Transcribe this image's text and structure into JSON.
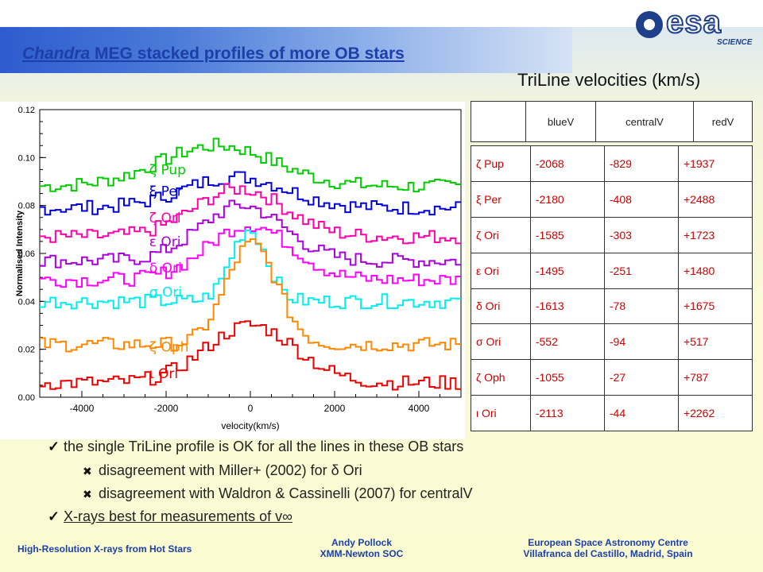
{
  "title": {
    "italic": "Chandra",
    "rest": " MEG stacked profiles of more OB stars"
  },
  "logo": {
    "text": "esa",
    "science": "SCIENCE"
  },
  "table_title": "TriLine velocities (km/s)",
  "table": {
    "headers": [
      "blueV",
      "centralV",
      "redV"
    ],
    "rows": [
      {
        "star": "ζ Pup",
        "blueV": "-2068",
        "centralV": "-829",
        "redV": "+1937"
      },
      {
        "star": "ξ Per",
        "blueV": "-2180",
        "centralV": "-408",
        "redV": "+2488"
      },
      {
        "star": "ζ Ori",
        "blueV": "-1585",
        "centralV": "-303",
        "redV": "+1723"
      },
      {
        "star": "ε Ori",
        "blueV": "-1495",
        "centralV": "-251",
        "redV": "+1480"
      },
      {
        "star": "δ Ori",
        "blueV": "-1613",
        "centralV": "-78",
        "redV": "+1675"
      },
      {
        "star": "σ Ori",
        "blueV": "-552",
        "centralV": "-94",
        "redV": "+517"
      },
      {
        "star": "ζ Oph",
        "blueV": "-1055",
        "centralV": "-27",
        "redV": "+787"
      },
      {
        "star": "ι Ori",
        "blueV": "-2113",
        "centralV": "-44",
        "redV": "+2262"
      }
    ]
  },
  "chart_data": {
    "type": "line",
    "xlabel": "velocity(km/s)",
    "ylabel": "Normalised Intensity",
    "xlim": [
      -5000,
      5000
    ],
    "ylim": [
      0.0,
      0.12
    ],
    "xticks": [
      "-4000",
      "-2000",
      "0",
      "2000",
      "4000"
    ],
    "yticks": [
      "0.00",
      "0.02",
      "0.04",
      "0.06",
      "0.08",
      "0.10",
      "0.12"
    ],
    "series": [
      {
        "name": "ζ Pup",
        "color": "#00cc00",
        "base": 0.088,
        "peak": 0.105,
        "center": -829,
        "width": 1900
      },
      {
        "name": "ξ Per",
        "color": "#0000dd",
        "base": 0.079,
        "peak": 0.092,
        "center": -408,
        "width": 1700
      },
      {
        "name": "ζ Ori",
        "color": "#ff00aa",
        "base": 0.067,
        "peak": 0.087,
        "center": -303,
        "width": 1500
      },
      {
        "name": "ε Ori",
        "color": "#aa00dd",
        "base": 0.057,
        "peak": 0.08,
        "center": -251,
        "width": 1400
      },
      {
        "name": "δ Ori",
        "color": "#ff00ff",
        "base": 0.049,
        "peak": 0.072,
        "center": -78,
        "width": 1400
      },
      {
        "name": "σ Ori",
        "color": "#00eeee",
        "base": 0.04,
        "peak": 0.07,
        "center": -94,
        "width": 600
      },
      {
        "name": "ζ Oph",
        "color": "#ff8800",
        "base": 0.022,
        "peak": 0.064,
        "center": -27,
        "width": 850
      },
      {
        "name": "ι Ori",
        "color": "#ee0000",
        "base": 0.006,
        "peak": 0.03,
        "center": -44,
        "width": 1500
      }
    ]
  },
  "bullets": [
    {
      "type": "check",
      "text": "the single TriLine profile is OK for all the lines in these OB stars"
    },
    {
      "type": "cross",
      "text": "disagreement with Miller+ (2002) for δ Ori"
    },
    {
      "type": "cross",
      "text": "disagreement with Waldron & Cassinelli (2007) for centralV"
    },
    {
      "type": "check",
      "text": "X-rays best for measurements of v∞"
    }
  ],
  "footer": {
    "left": "High-Resolution X-rays from Hot Stars",
    "center1": "Andy Pollock",
    "center2": "XMM-Newton SOC",
    "right1": "European Space Astronomy Centre",
    "right2": "Villafranca del Castillo, Madrid, Spain"
  }
}
